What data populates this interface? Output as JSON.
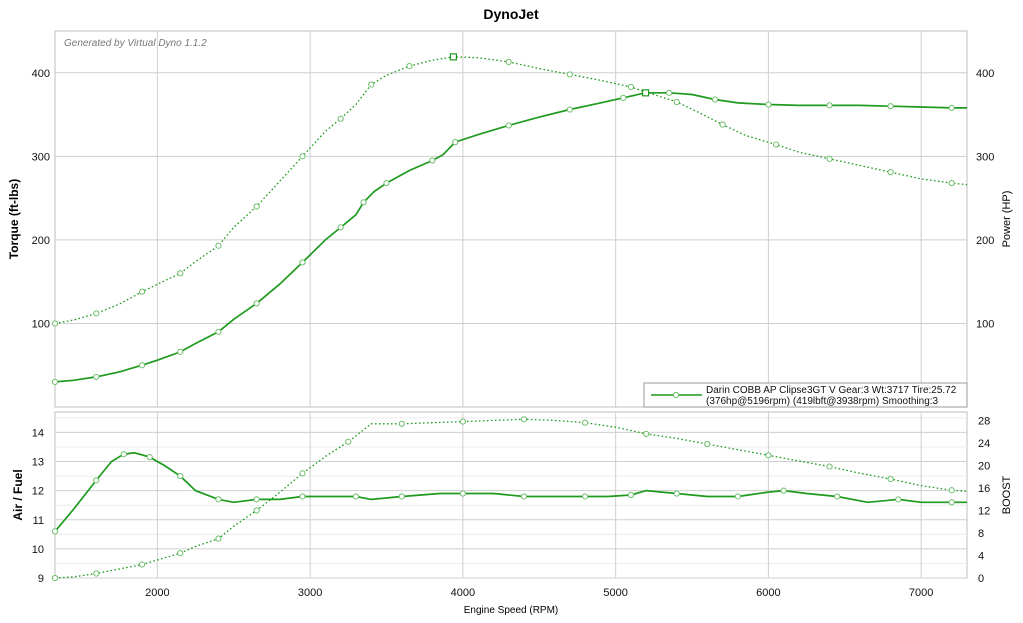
{
  "title": "DynoJet",
  "watermark": "Generated by Virtual Dyno 1.1.2",
  "colors": {
    "series": "#1e9a1e",
    "grid": "#cfcfcf",
    "minor_grid": "#ececec",
    "marker": "#6dbf6d"
  },
  "legend": {
    "line1": "Darin COBB AP Clipse3GT V Gear:3 Wt:3717 Tire:25.72",
    "line2": "(376hp@5196rpm) (419lbft@3938rpm) Smoothing:3",
    "placement": "bottom-right of top panel"
  },
  "chart_data": [
    {
      "type": "line",
      "panel": "top",
      "xlabel": "",
      "ylabel_left": "Torque (ft-lbs)",
      "ylabel_right": "Power (HP)",
      "xlim": [
        1330,
        7300
      ],
      "ylim": [
        0,
        450
      ],
      "yticks": [
        100,
        200,
        300,
        400
      ],
      "grid": true,
      "series": [
        {
          "key": "power",
          "axis": "right",
          "style": "solid",
          "points": [
            [
              1330,
              30
            ],
            [
              1450,
              32
            ],
            [
              1600,
              36
            ],
            [
              1750,
              42
            ],
            [
              1900,
              50
            ],
            [
              2000,
              56
            ],
            [
              2150,
              66
            ],
            [
              2250,
              76
            ],
            [
              2400,
              90
            ],
            [
              2500,
              105
            ],
            [
              2650,
              124
            ],
            [
              2800,
              147
            ],
            [
              2950,
              173
            ],
            [
              3100,
              200
            ],
            [
              3200,
              215
            ],
            [
              3300,
              230
            ],
            [
              3350,
              245
            ],
            [
              3420,
              258
            ],
            [
              3500,
              268
            ],
            [
              3650,
              283
            ],
            [
              3800,
              295
            ],
            [
              3870,
              302
            ],
            [
              3950,
              317
            ],
            [
              4100,
              326
            ],
            [
              4300,
              337
            ],
            [
              4500,
              347
            ],
            [
              4700,
              356
            ],
            [
              4900,
              364
            ],
            [
              5050,
              370
            ],
            [
              5196,
              376
            ],
            [
              5350,
              376
            ],
            [
              5500,
              374
            ],
            [
              5650,
              368
            ],
            [
              5800,
              364
            ],
            [
              6000,
              362
            ],
            [
              6200,
              361
            ],
            [
              6400,
              361
            ],
            [
              6600,
              361
            ],
            [
              6800,
              360
            ],
            [
              7000,
              359
            ],
            [
              7200,
              358
            ],
            [
              7300,
              358
            ]
          ]
        },
        {
          "key": "torque",
          "axis": "left",
          "style": "dotted",
          "points": [
            [
              1330,
              100
            ],
            [
              1450,
              104
            ],
            [
              1600,
              112
            ],
            [
              1750,
              123
            ],
            [
              1900,
              138
            ],
            [
              2000,
              147
            ],
            [
              2150,
              160
            ],
            [
              2250,
              174
            ],
            [
              2400,
              193
            ],
            [
              2500,
              215
            ],
            [
              2650,
              240
            ],
            [
              2800,
              270
            ],
            [
              2950,
              300
            ],
            [
              3100,
              330
            ],
            [
              3200,
              345
            ],
            [
              3300,
              362
            ],
            [
              3400,
              386
            ],
            [
              3500,
              397
            ],
            [
              3650,
              408
            ],
            [
              3800,
              415
            ],
            [
              3938,
              419
            ],
            [
              4100,
              418
            ],
            [
              4300,
              413
            ],
            [
              4500,
              405
            ],
            [
              4700,
              398
            ],
            [
              4900,
              391
            ],
            [
              5100,
              383
            ],
            [
              5250,
              374
            ],
            [
              5400,
              365
            ],
            [
              5550,
              352
            ],
            [
              5700,
              338
            ],
            [
              5850,
              325
            ],
            [
              6050,
              314
            ],
            [
              6200,
              305
            ],
            [
              6400,
              297
            ],
            [
              6600,
              289
            ],
            [
              6800,
              281
            ],
            [
              7000,
              273
            ],
            [
              7200,
              268
            ],
            [
              7300,
              266
            ]
          ]
        }
      ]
    },
    {
      "type": "line",
      "panel": "bottom",
      "xlabel": "Engine Speed (RPM)",
      "ylabel_left": "Air / Fuel",
      "ylabel_right": "BOOST",
      "xlim": [
        1330,
        7300
      ],
      "xticks": [
        2000,
        3000,
        4000,
        5000,
        6000,
        7000
      ],
      "ylim_left": [
        9,
        14.7
      ],
      "yticks_left": [
        9,
        10,
        11,
        12,
        13,
        14
      ],
      "ylim_right": [
        0,
        29.5
      ],
      "yticks_right": [
        0,
        4,
        8,
        12,
        16,
        20,
        24,
        28
      ],
      "grid": true,
      "series": [
        {
          "key": "afr",
          "axis": "left",
          "style": "solid",
          "points": [
            [
              1330,
              10.6
            ],
            [
              1450,
              11.35
            ],
            [
              1600,
              12.35
            ],
            [
              1700,
              13.0
            ],
            [
              1780,
              13.25
            ],
            [
              1850,
              13.3
            ],
            [
              1950,
              13.15
            ],
            [
              2050,
              12.85
            ],
            [
              2150,
              12.5
            ],
            [
              2250,
              12.0
            ],
            [
              2400,
              11.7
            ],
            [
              2500,
              11.6
            ],
            [
              2650,
              11.7
            ],
            [
              2800,
              11.7
            ],
            [
              2950,
              11.8
            ],
            [
              3100,
              11.8
            ],
            [
              3300,
              11.8
            ],
            [
              3400,
              11.7
            ],
            [
              3600,
              11.8
            ],
            [
              3850,
              11.9
            ],
            [
              4000,
              11.9
            ],
            [
              4200,
              11.9
            ],
            [
              4400,
              11.8
            ],
            [
              4600,
              11.8
            ],
            [
              4800,
              11.8
            ],
            [
              4950,
              11.8
            ],
            [
              5100,
              11.85
            ],
            [
              5200,
              12.0
            ],
            [
              5400,
              11.9
            ],
            [
              5600,
              11.8
            ],
            [
              5800,
              11.8
            ],
            [
              6000,
              11.95
            ],
            [
              6100,
              12.0
            ],
            [
              6250,
              11.9
            ],
            [
              6450,
              11.8
            ],
            [
              6650,
              11.6
            ],
            [
              6850,
              11.7
            ],
            [
              7000,
              11.6
            ],
            [
              7200,
              11.6
            ],
            [
              7300,
              11.6
            ]
          ]
        },
        {
          "key": "boost",
          "axis": "right",
          "style": "dotted",
          "points": [
            [
              1330,
              0
            ],
            [
              1450,
              0.2
            ],
            [
              1600,
              0.8
            ],
            [
              1750,
              1.6
            ],
            [
              1900,
              2.4
            ],
            [
              2000,
              3.2
            ],
            [
              2150,
              4.4
            ],
            [
              2250,
              5.6
            ],
            [
              2400,
              7.0
            ],
            [
              2500,
              9.2
            ],
            [
              2650,
              12.0
            ],
            [
              2800,
              15.2
            ],
            [
              2950,
              18.6
            ],
            [
              3100,
              21.6
            ],
            [
              3250,
              24.2
            ],
            [
              3400,
              27.4
            ],
            [
              3600,
              27.4
            ],
            [
              3800,
              27.6
            ],
            [
              4000,
              27.8
            ],
            [
              4200,
              28.0
            ],
            [
              4400,
              28.2
            ],
            [
              4600,
              28.0
            ],
            [
              4800,
              27.6
            ],
            [
              5000,
              26.8
            ],
            [
              5200,
              25.6
            ],
            [
              5400,
              24.8
            ],
            [
              5600,
              23.8
            ],
            [
              5800,
              22.8
            ],
            [
              6000,
              21.8
            ],
            [
              6200,
              20.8
            ],
            [
              6400,
              19.8
            ],
            [
              6600,
              18.6
            ],
            [
              6800,
              17.6
            ],
            [
              7000,
              16.4
            ],
            [
              7200,
              15.6
            ],
            [
              7300,
              15.4
            ]
          ]
        }
      ]
    }
  ]
}
